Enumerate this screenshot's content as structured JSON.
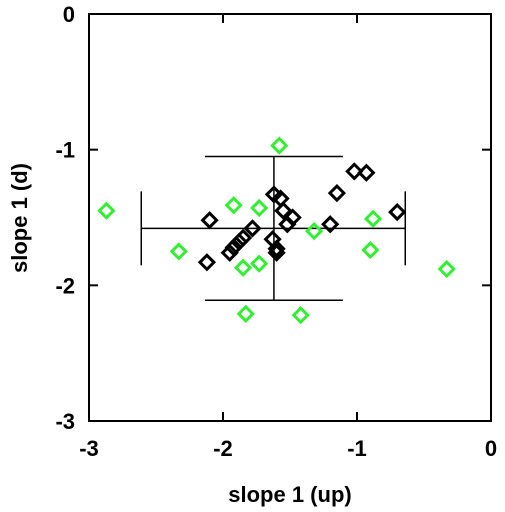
{
  "chart_data": {
    "type": "scatter",
    "title": "",
    "xlabel": "slope 1 (up)",
    "ylabel": "slope 1 (d)",
    "xlim": [
      -3,
      0
    ],
    "ylim": [
      -3,
      0
    ],
    "x_ticks": [
      -3,
      -2,
      -1,
      0
    ],
    "y_ticks": [
      0,
      -1,
      -2,
      -3
    ],
    "x_tick_labels": [
      "-3",
      "-2",
      "-1",
      "0"
    ],
    "y_tick_labels": [
      "0",
      "-1",
      "-2",
      "-3"
    ],
    "grid": false,
    "legend": "none",
    "marker": "diamond",
    "series": [
      {
        "color": "#000000",
        "points": [
          [
            -2.1,
            -1.52
          ],
          [
            -2.12,
            -1.83
          ],
          [
            -1.95,
            -1.76
          ],
          [
            -1.92,
            -1.72
          ],
          [
            -1.88,
            -1.68
          ],
          [
            -1.85,
            -1.65
          ],
          [
            -1.78,
            -1.58
          ],
          [
            -1.62,
            -1.33
          ],
          [
            -1.57,
            -1.36
          ],
          [
            -1.55,
            -1.45
          ],
          [
            -1.52,
            -1.55
          ],
          [
            -1.48,
            -1.5
          ],
          [
            -1.63,
            -1.66
          ],
          [
            -1.6,
            -1.73
          ],
          [
            -1.6,
            -1.76
          ],
          [
            -1.2,
            -1.55
          ],
          [
            -1.15,
            -1.32
          ],
          [
            -1.02,
            -1.16
          ],
          [
            -0.93,
            -1.17
          ],
          [
            -0.7,
            -1.46
          ]
        ]
      },
      {
        "color": "#33ee33",
        "points": [
          [
            -2.87,
            -1.45
          ],
          [
            -2.33,
            -1.75
          ],
          [
            -1.92,
            -1.41
          ],
          [
            -1.85,
            -1.87
          ],
          [
            -1.73,
            -1.43
          ],
          [
            -1.73,
            -1.84
          ],
          [
            -1.58,
            -0.97
          ],
          [
            -1.32,
            -1.6
          ],
          [
            -0.88,
            -1.51
          ],
          [
            -0.9,
            -1.74
          ],
          [
            -0.33,
            -1.88
          ],
          [
            -1.83,
            -2.21
          ],
          [
            -1.42,
            -2.22
          ]
        ]
      }
    ],
    "error_bars": {
      "center": [
        -1.62,
        -1.58
      ],
      "x_range": [
        -2.61,
        -0.64
      ],
      "y_range": [
        -2.11,
        -1.05
      ],
      "color": "#000000"
    }
  }
}
